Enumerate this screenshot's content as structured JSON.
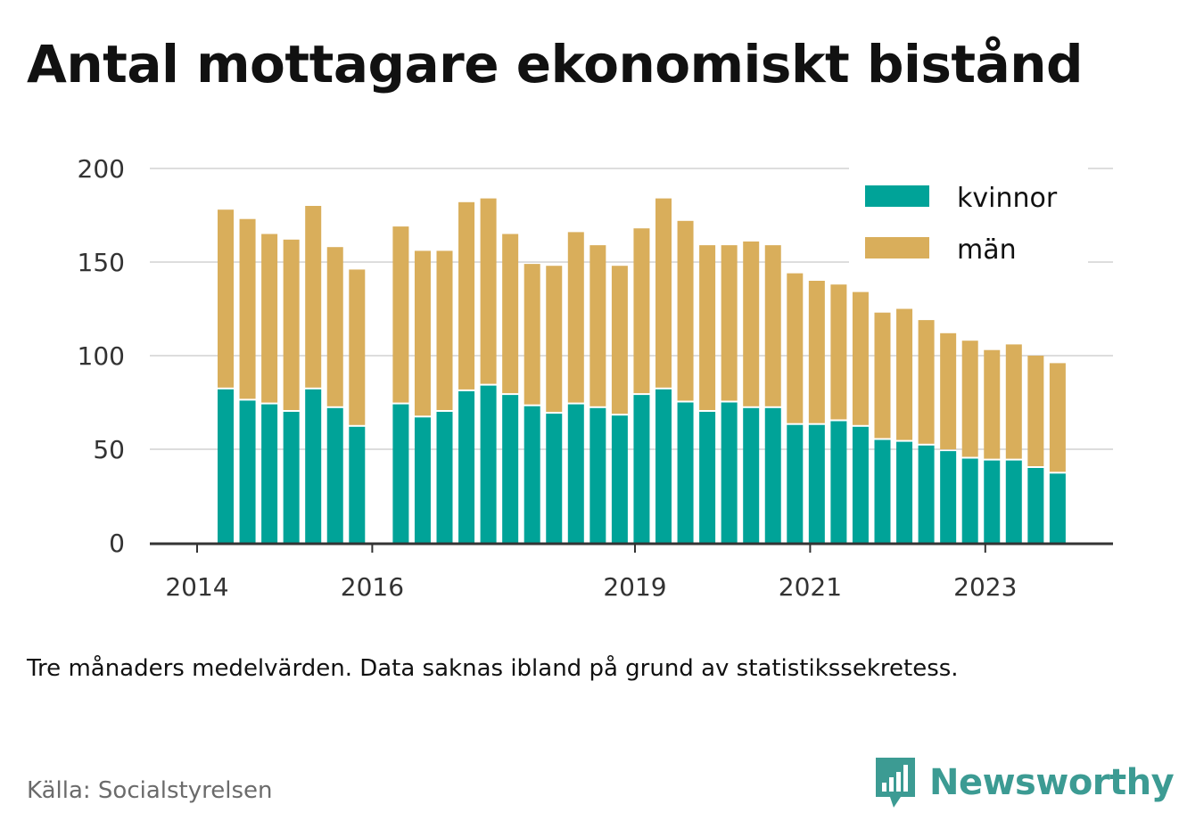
{
  "title": "Antal mottagare ekonomiskt bistånd",
  "note": "Tre månaders medelvärden. Data saknas ibland på grund av statistikssekretess.",
  "source": "Källa: Socialstyrelsen",
  "brand": "Newsworthy",
  "colors": {
    "kvinnor": "#00a398",
    "man": "#d9ae5b",
    "grid": "#dddddd",
    "axis": "#333333"
  },
  "chart_data": {
    "type": "bar",
    "stacked": true,
    "x_tick_labels": [
      "2014",
      "2016",
      "2019",
      "2021",
      "2023"
    ],
    "y_ticks": [
      0,
      50,
      100,
      150,
      200
    ],
    "ylim": [
      0,
      200
    ],
    "grid": true,
    "legend_position": "top-right",
    "series": [
      {
        "name": "kvinnor",
        "values": [
          82,
          76,
          74,
          70,
          82,
          72,
          62,
          null,
          74,
          67,
          70,
          81,
          84,
          79,
          73,
          69,
          74,
          72,
          68,
          79,
          82,
          75,
          70,
          75,
          72,
          72,
          63,
          63,
          65,
          62,
          55,
          54,
          52,
          49,
          45,
          44,
          44,
          40,
          37
        ]
      },
      {
        "name": "män",
        "values": [
          96,
          97,
          91,
          92,
          98,
          86,
          84,
          null,
          95,
          89,
          86,
          101,
          100,
          86,
          76,
          79,
          92,
          87,
          80,
          89,
          102,
          97,
          89,
          84,
          89,
          87,
          81,
          77,
          73,
          72,
          68,
          71,
          67,
          63,
          63,
          59,
          62,
          60,
          59
        ]
      }
    ]
  }
}
